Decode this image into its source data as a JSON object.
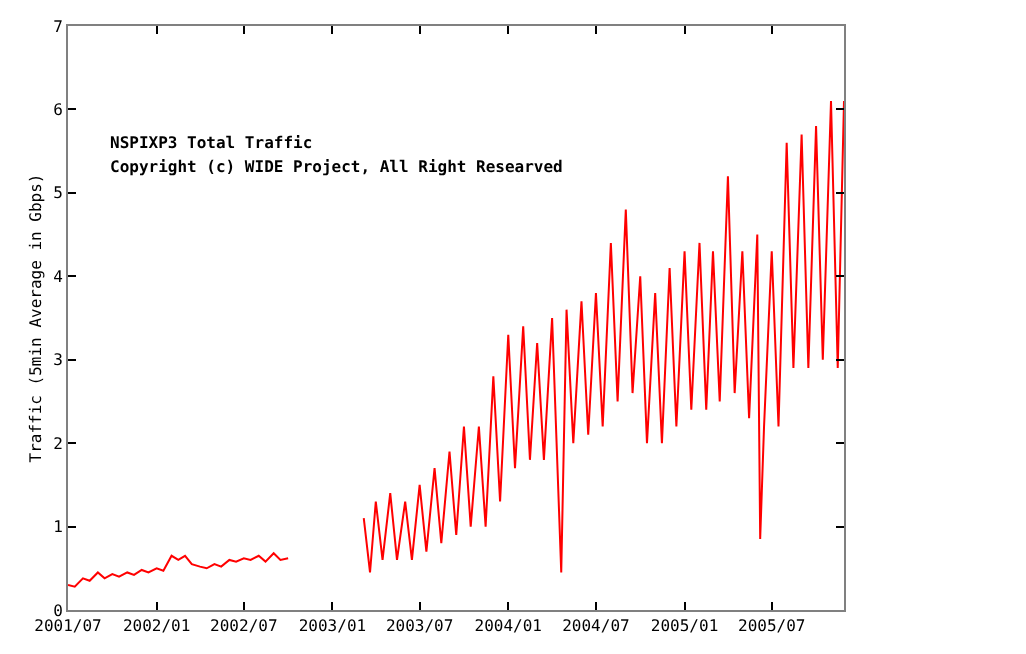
{
  "chart_data": {
    "type": "line",
    "ylabel": "Traffic (5min Average in Gbps)",
    "annotations": [
      "NSPIXP3 Total Traffic",
      "Copyright (c) WIDE Project, All Right Researved"
    ],
    "xlim": [
      "2001-07-01",
      "2005-11-28"
    ],
    "xticks": [
      {
        "value": "2001-07-01",
        "label": "2001/07"
      },
      {
        "value": "2002-01-01",
        "label": "2002/01"
      },
      {
        "value": "2002-07-01",
        "label": "2002/07"
      },
      {
        "value": "2003-01-01",
        "label": "2003/01"
      },
      {
        "value": "2003-07-01",
        "label": "2003/07"
      },
      {
        "value": "2004-01-01",
        "label": "2004/01"
      },
      {
        "value": "2004-07-01",
        "label": "2004/07"
      },
      {
        "value": "2005-01-01",
        "label": "2005/01"
      },
      {
        "value": "2005-07-01",
        "label": "2005/07"
      }
    ],
    "ylim": [
      0,
      7
    ],
    "yticks": [
      0,
      1,
      2,
      3,
      4,
      5,
      6,
      7
    ],
    "marker": "none",
    "line_style": "solid",
    "series": [
      {
        "color": "#ff0000",
        "x": [
          "2001-07-01",
          "2001-07-15",
          "2001-08-01",
          "2001-08-15",
          "2001-09-01",
          "2001-09-15",
          "2001-10-01",
          "2001-10-15",
          "2001-11-01",
          "2001-11-15",
          "2001-12-01",
          "2001-12-15",
          "2002-01-01",
          "2002-01-15",
          "2002-02-01",
          "2002-02-15",
          "2002-03-01",
          "2002-03-15",
          "2002-04-01",
          "2002-04-15",
          "2002-05-01",
          "2002-05-15",
          "2002-06-01",
          "2002-06-15",
          "2002-07-01",
          "2002-07-15",
          "2002-08-01",
          "2002-08-15",
          "2002-09-01",
          "2002-09-15",
          "2002-10-01",
          "2002-11-01",
          "2003-03-07",
          "2003-03-20",
          "2003-04-01",
          "2003-04-15",
          "2003-05-01",
          "2003-05-15",
          "2003-06-01",
          "2003-06-15",
          "2003-07-01",
          "2003-07-15",
          "2003-08-01",
          "2003-08-15",
          "2003-09-01",
          "2003-09-15",
          "2003-10-01",
          "2003-10-15",
          "2003-11-01",
          "2003-11-15",
          "2003-12-01",
          "2003-12-15",
          "2004-01-01",
          "2004-01-15",
          "2004-02-01",
          "2004-02-15",
          "2004-03-01",
          "2004-03-15",
          "2004-04-01",
          "2004-04-20",
          "2004-05-01",
          "2004-05-15",
          "2004-06-01",
          "2004-06-15",
          "2004-07-01",
          "2004-07-15",
          "2004-08-01",
          "2004-08-15",
          "2004-09-01",
          "2004-09-15",
          "2004-10-01",
          "2004-10-15",
          "2004-11-01",
          "2004-11-15",
          "2004-12-01",
          "2004-12-15",
          "2005-01-01",
          "2005-01-15",
          "2005-02-01",
          "2005-02-15",
          "2005-03-01",
          "2005-03-15",
          "2005-04-01",
          "2005-04-15",
          "2005-05-01",
          "2005-05-15",
          "2005-06-01",
          "2005-06-07",
          "2005-06-15",
          "2005-07-01",
          "2005-07-15",
          "2005-08-01",
          "2005-08-15",
          "2005-09-01",
          "2005-09-15",
          "2005-10-01",
          "2005-10-15",
          "2005-11-01",
          "2005-11-15",
          "2005-11-28"
        ],
        "values": [
          0.3,
          0.28,
          0.38,
          0.35,
          0.45,
          0.38,
          0.43,
          0.4,
          0.45,
          0.42,
          0.48,
          0.45,
          0.5,
          0.47,
          0.65,
          0.6,
          0.65,
          0.55,
          0.52,
          0.5,
          0.55,
          0.52,
          0.6,
          0.58,
          0.62,
          0.6,
          0.65,
          0.58,
          0.68,
          0.6,
          0.62,
          null,
          1.1,
          0.45,
          1.3,
          0.6,
          1.4,
          0.6,
          1.3,
          0.6,
          1.5,
          0.7,
          1.7,
          0.8,
          1.9,
          0.9,
          2.2,
          1.0,
          2.2,
          1.0,
          2.8,
          1.3,
          3.3,
          1.7,
          3.4,
          1.8,
          3.2,
          1.8,
          3.5,
          0.45,
          3.6,
          2.0,
          3.7,
          2.1,
          3.8,
          2.2,
          4.4,
          2.5,
          4.8,
          2.6,
          4.0,
          2.0,
          3.8,
          2.0,
          4.1,
          2.2,
          4.3,
          2.4,
          4.4,
          2.4,
          4.3,
          2.5,
          5.2,
          2.6,
          4.3,
          2.3,
          4.5,
          0.85,
          2.2,
          4.3,
          2.2,
          5.6,
          2.9,
          5.7,
          2.9,
          5.8,
          3.0,
          6.1,
          2.9,
          6.1
        ]
      }
    ]
  }
}
